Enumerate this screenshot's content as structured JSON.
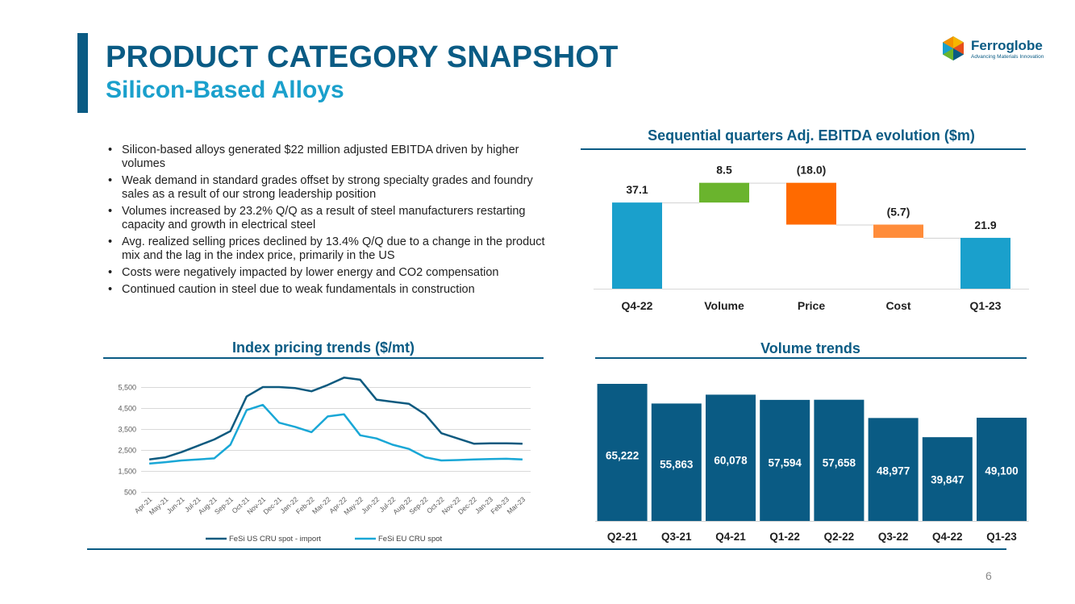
{
  "header": {
    "title": "PRODUCT CATEGORY SNAPSHOT",
    "subtitle": "Silicon-Based Alloys"
  },
  "logo": {
    "name": "Ferroglobe",
    "tagline": "Advancing Materials Innovation"
  },
  "bullets": [
    "Silicon-based alloys generated $22 million adjusted EBITDA driven by higher volumes",
    "Weak demand in standard grades offset by strong specialty grades and foundry sales as a result of our strong leadership position",
    "Volumes increased by 23.2% Q/Q as a result of steel manufacturers restarting capacity and growth in electrical steel",
    "Avg. realized selling prices declined by 13.4% Q/Q due to a change in the product mix and the lag in the index price, primarily in the US",
    "Costs were negatively impacted by lower energy and CO2 compensation",
    "Continued caution in steel due to weak fundamentals in construction"
  ],
  "page_number": "6",
  "colors": {
    "navy": "#0a5b84",
    "teal": "#1aa0cc",
    "green": "#6ab42d",
    "orange_dark": "#ff6a00",
    "orange_light": "#ff8c3a",
    "us_line": "#0e5a7f",
    "eu_line": "#19a7d6"
  },
  "chart_data": [
    {
      "type": "waterfall",
      "title": "Sequential quarters Adj. EBITDA evolution ($m)",
      "categories": [
        "Q4-22",
        "Volume",
        "Price",
        "Cost",
        "Q1-23"
      ],
      "values": [
        37.1,
        8.5,
        -18.0,
        -5.7,
        21.9
      ],
      "labels": [
        "37.1",
        "8.5",
        "(18.0)",
        "(5.7)",
        "21.9"
      ],
      "kinds": [
        "total",
        "delta",
        "delta",
        "delta",
        "total"
      ]
    },
    {
      "type": "line",
      "title": "Index pricing trends ($/mt)",
      "categories": [
        "Apr-21",
        "May-21",
        "Jun-21",
        "Jul-21",
        "Aug-21",
        "Sep-21",
        "Oct-21",
        "Nov-21",
        "Dec-21",
        "Jan-22",
        "Feb-22",
        "Mar-22",
        "Apr-22",
        "May-22",
        "Jun-22",
        "Jul-22",
        "Aug-22",
        "Sep-22",
        "Oct-22",
        "Nov-22",
        "Dec-22",
        "Jan-23",
        "Feb-23",
        "Mar-23"
      ],
      "yticks": [
        500,
        1500,
        2500,
        3500,
        4500,
        5500
      ],
      "ylim": [
        500,
        6000
      ],
      "series": [
        {
          "name": "FeSi US CRU spot - import",
          "values": [
            2050,
            2150,
            2400,
            2700,
            3000,
            3400,
            5050,
            5500,
            5500,
            5450,
            5300,
            5600,
            5950,
            5850,
            4900,
            4800,
            4700,
            4200,
            3300,
            3050,
            2800,
            2820,
            2820,
            2800
          ]
        },
        {
          "name": "FeSi EU CRU spot",
          "values": [
            1850,
            1920,
            2000,
            2050,
            2100,
            2750,
            4400,
            4650,
            3800,
            3600,
            3350,
            4100,
            4200,
            3200,
            3050,
            2750,
            2550,
            2150,
            2000,
            2020,
            2050,
            2070,
            2080,
            2050
          ]
        }
      ]
    },
    {
      "type": "bar",
      "title": "Volume trends",
      "categories": [
        "Q2-21",
        "Q3-21",
        "Q4-21",
        "Q1-22",
        "Q2-22",
        "Q3-22",
        "Q4-22",
        "Q1-23"
      ],
      "values": [
        65222,
        55863,
        60078,
        57594,
        57658,
        48977,
        39847,
        49100
      ],
      "labels": [
        "65,222",
        "55,863",
        "60,078",
        "57,594",
        "57,658",
        "48,977",
        "39,847",
        "49,100"
      ]
    }
  ]
}
